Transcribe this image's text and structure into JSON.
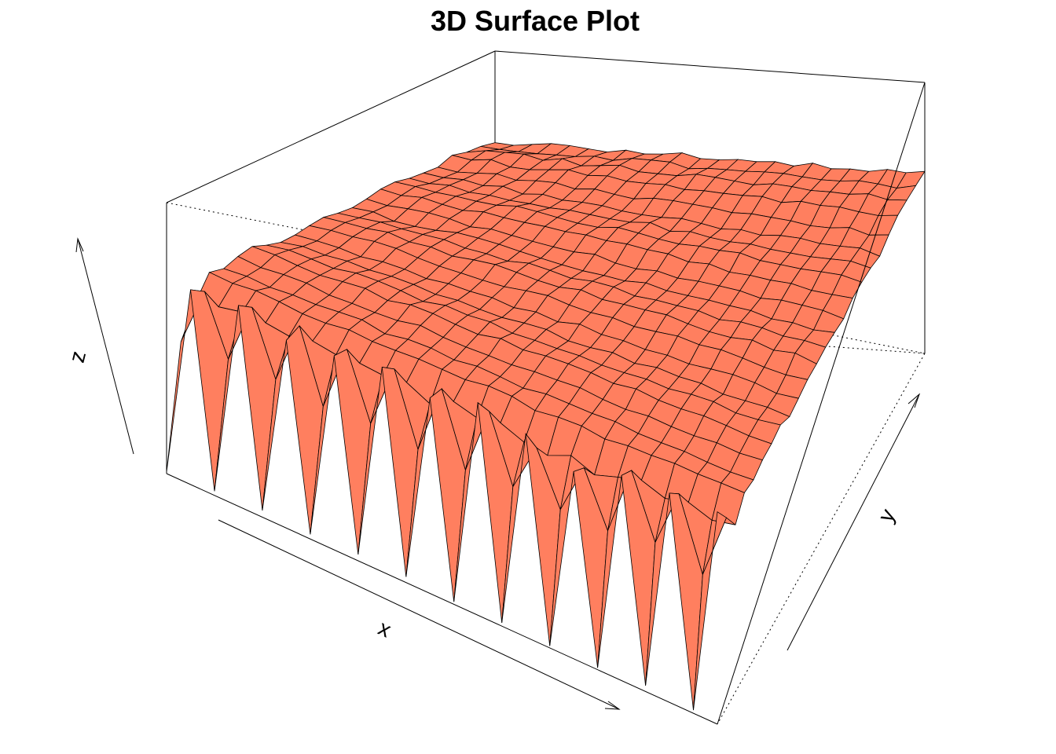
{
  "chart_data": {
    "type": "surface",
    "title": "3D Surface Plot",
    "xlabel": "x",
    "ylabel": "y",
    "zlabel": "z",
    "surface_color": "#ff7f5f",
    "edge_color": "#000000",
    "box": true,
    "ticks": false,
    "grid_size": [
      24,
      24
    ],
    "description_of_shape": {
      "baseline_z": 0.0,
      "spike_minimum_z": -1.0,
      "spike_maximum_z": 0.6
    }
  }
}
